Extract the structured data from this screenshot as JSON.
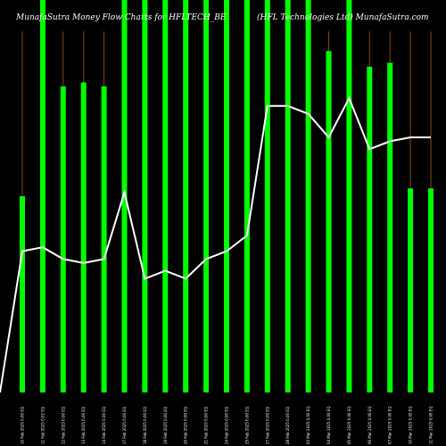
{
  "header": {
    "left": "MunafaSutra  Money Flow  Charts for HFLTECH_BE",
    "right": "(HFL Technologies Ltd) MunafaSutra.com"
  },
  "colors": {
    "background": "#000000",
    "bar": "#00ff00",
    "stem": "#8b4513",
    "line": "#ffffff"
  },
  "chart_data": {
    "type": "bar",
    "ylim": [
      0,
      100
    ],
    "categories": [
      "10 Feb 2025 0.00 EQ",
      "11 Feb 2025 0.02 EQ",
      "12 Feb 2025 0.00 EQ",
      "13 Feb 2025 0.00 EQ",
      "14 Feb 2025 0.00 EQ",
      "17 Feb 2025 0.00 EQ",
      "18 Feb 2025 0.00 EQ",
      "19 Feb 2025 0.00 EQ",
      "20 Feb 2025 0.00 EQ",
      "21 Feb 2025 0.00 EQ",
      "24 Feb 2025 0.00 EQ",
      "25 Feb 2025 0.00 EQ",
      "27 Feb 2025 0.00 EQ",
      "28 Feb 2025 0.00 EQ",
      "03 Mar 2025 0.00 EQ",
      "04 Mar 2025 0.00 EQ",
      "05 Mar 2025 0.00 EQ",
      "06 Mar 2025 0.00 EQ",
      "07 Mar 2025 0.00 EQ",
      "10 Mar 2025 0.00 EQ",
      "11 Mar 2025 0.00 EQ"
    ],
    "series": [
      {
        "type": "bar",
        "values": [
          50,
          100,
          78,
          79,
          78,
          100,
          100,
          100,
          100,
          100,
          100,
          100,
          100,
          100,
          100,
          87,
          100,
          83,
          84,
          52,
          52
        ]
      },
      {
        "type": "line",
        "values": [
          36,
          37,
          34,
          33,
          34,
          51,
          29,
          31,
          29,
          34,
          36,
          40,
          73,
          73,
          71,
          65,
          75,
          62,
          64,
          65,
          65
        ]
      }
    ],
    "stem_top": 92
  }
}
